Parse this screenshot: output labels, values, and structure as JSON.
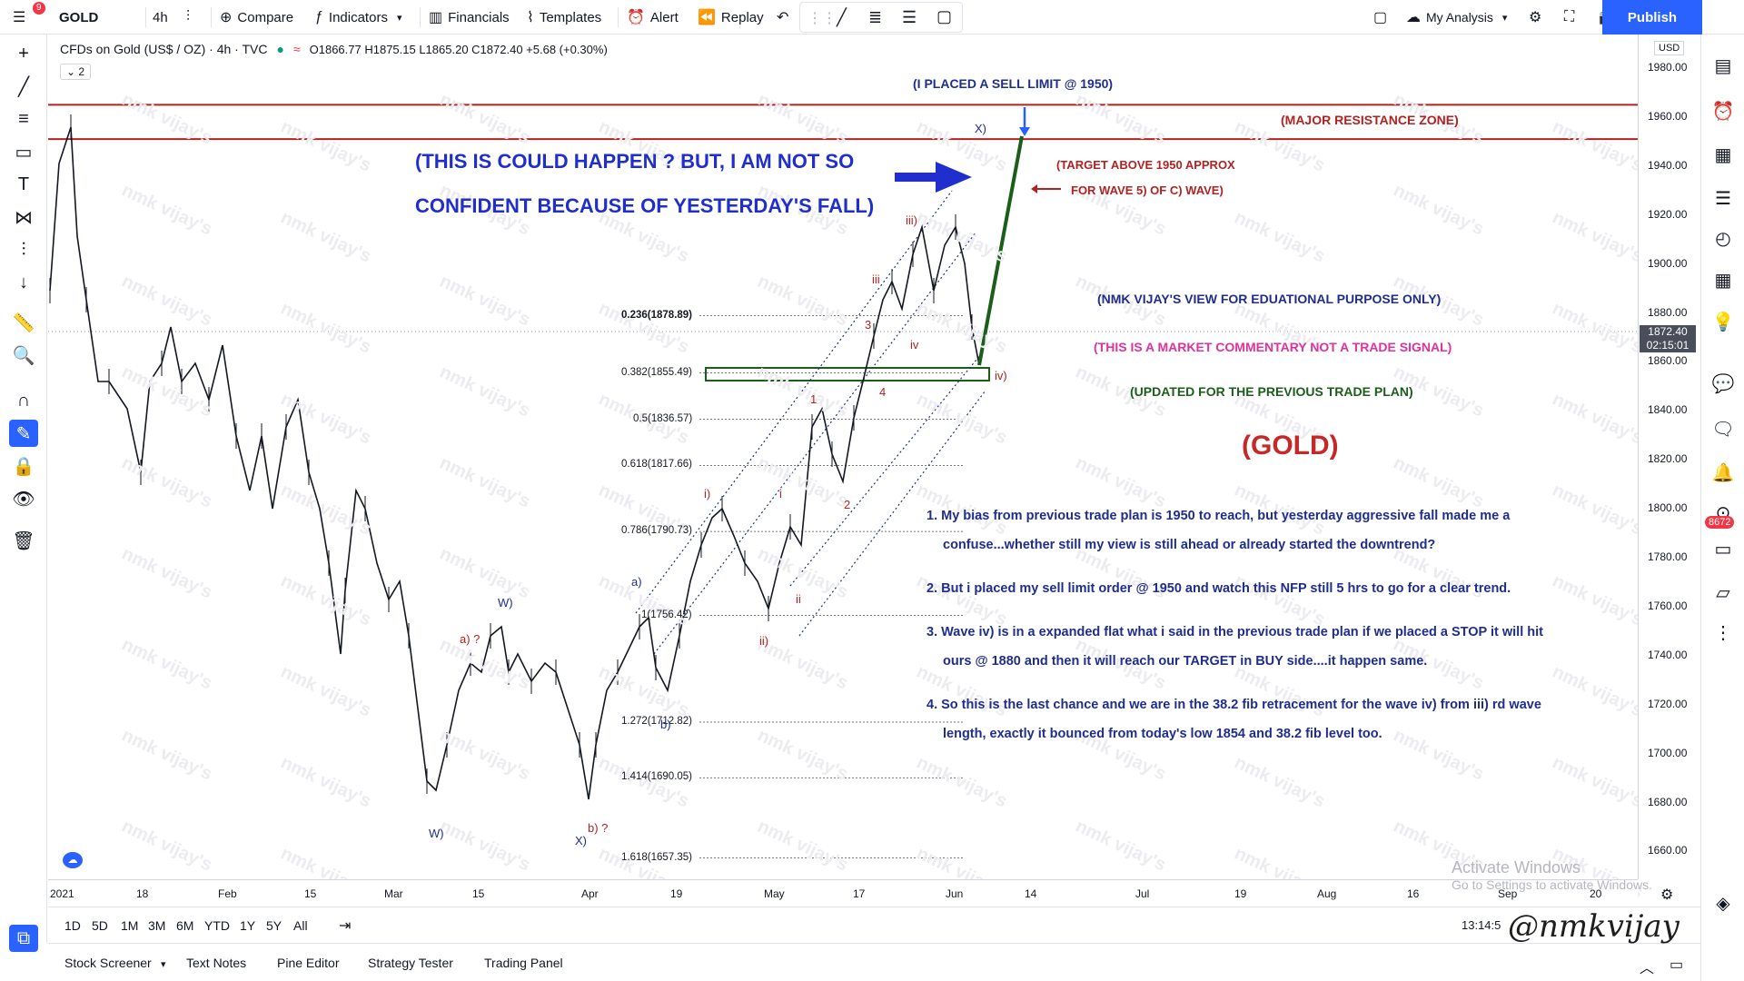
{
  "topbar": {
    "notif_count": "9",
    "symbol": "GOLD",
    "interval": "4h",
    "compare": "Compare",
    "indicators": "Indicators",
    "financials": "Financials",
    "templates": "Templates",
    "alert": "Alert",
    "replay": "Replay",
    "layout_name": "My Analysis",
    "publish": "Publish"
  },
  "legend": {
    "title": "CFDs on Gold (US$ / OZ) · 4h · TVC",
    "ohlc": "O1866.77 H1875.15 L1865.20 C1872.40 +5.68 (+0.30%)",
    "collapse": "2"
  },
  "price_axis": {
    "currency": "USD",
    "labels": [
      "1980.00",
      "1960.00",
      "1940.00",
      "1920.00",
      "1900.00",
      "1880.00",
      "1860.00",
      "1840.00",
      "1820.00",
      "1800.00",
      "1780.00",
      "1760.00",
      "1740.00",
      "1720.00",
      "1700.00",
      "1680.00",
      "1660.00"
    ],
    "current_price": "1872.40",
    "countdown": "02:15:01"
  },
  "time_axis": {
    "labels": [
      "2021",
      "18",
      "Feb",
      "15",
      "Mar",
      "15",
      "Apr",
      "19",
      "May",
      "17",
      "Jun",
      "14",
      "Jul",
      "19",
      "Aug",
      "16",
      "Sep",
      "20"
    ]
  },
  "annotations": {
    "sell_limit": "(I PLACED A SELL LIMIT @ 1950)",
    "major_resistance": "(MAJOR RESISTANCE ZONE)",
    "could_happen_1": "(THIS IS COULD HAPPEN ? BUT, I AM NOT SO",
    "could_happen_2": "CONFIDENT BECAUSE OF YESTERDAY'S FALL)",
    "target_1": "(TARGET ABOVE 1950 APPROX",
    "target_2": "FOR WAVE 5) OF C) WAVE)",
    "view": "(NMK VIJAY'S VIEW FOR EDUATIONAL PURPOSE ONLY)",
    "commentary": "(THIS IS A MARKET COMMENTARY NOT A TRADE SIGNAL)",
    "updated": "(UPDATED FOR THE PREVIOUS TRADE PLAN)",
    "gold": "(GOLD)",
    "note1a": "1. My bias from previous trade plan is 1950 to reach, but yesterday aggressive fall made me a",
    "note1b": "confuse...whether still my view is still ahead or already started the downtrend?",
    "note2": "2. But i placed my sell limit order @ 1950 and watch this NFP still 5 hrs to go for a clear trend.",
    "note3a": "3. Wave iv) is in a expanded flat what i said in the previous trade plan if we placed a STOP it will hit",
    "note3b": "ours @ 1880 and then it will reach our TARGET in BUY side....it happen same.",
    "note4a": "4. So this is the last chance and we are in the 38.2 fib retracement for the wave iv) from iii) rd wave",
    "note4b": "length, exactly it bounced from today's  low 1854 and 38.2 fib level too."
  },
  "fib_levels": [
    "0.236(1878.89)",
    "0.382(1855.49)",
    "0.5(1836.57)",
    "0.618(1817.66)",
    "0.786(1790.73)",
    "1(1756.42)",
    "1.272(1712.82)",
    "1.414(1690.05)",
    "1.618(1657.35)"
  ],
  "wave_labels": {
    "W_top": "W)",
    "W_bot": "W)",
    "a_q": "a) ?",
    "b_q": "b) ?",
    "X_bot": "X)",
    "X_top": "X)",
    "a": "a)",
    "i_paren": "i)",
    "ii_paren": "ii)",
    "iii_paren": "iii)",
    "iv_paren": "iv)",
    "i": "i",
    "ii": "ii",
    "iii": "iii",
    "iv": "iv",
    "one": "1",
    "two": "2",
    "three": "3",
    "four": "4",
    "b": "b)"
  },
  "bottom": {
    "ranges": [
      "1D",
      "5D",
      "1M",
      "3M",
      "6M",
      "YTD",
      "1Y",
      "5Y",
      "All"
    ],
    "time": "13:14:5",
    "tabs": [
      "Stock Screener",
      "Text Notes",
      "Pine Editor",
      "Strategy Tester",
      "Trading Panel"
    ]
  },
  "watermark": "nmk vijay's",
  "signature": "@nmkvijay",
  "activate": {
    "line1": "Activate Windows",
    "line2": "Go to Settings to activate Windows."
  },
  "right_badge": "8672",
  "colors": {
    "accent": "#2962ff",
    "resistance": "#b22222",
    "navy": "#1f2e8c",
    "magenta": "#e0329b",
    "green": "#1a5e1a"
  }
}
